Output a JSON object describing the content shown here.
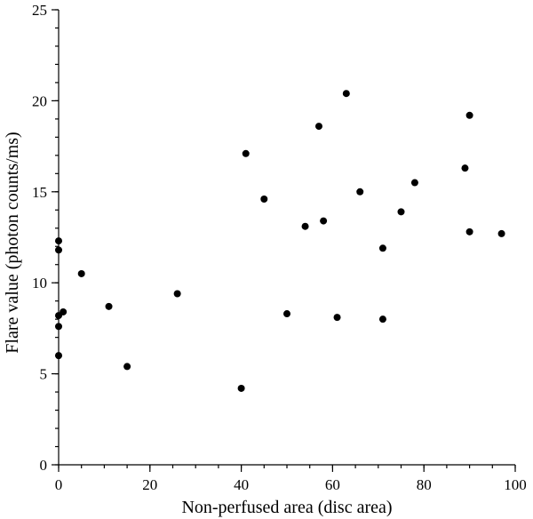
{
  "chart_data": {
    "type": "scatter",
    "title": "",
    "xlabel": "Non-perfused area (disc area)",
    "ylabel": "Flare value (photon counts/ms)",
    "xlim": [
      0,
      100
    ],
    "ylim": [
      0,
      25
    ],
    "xticks": [
      0,
      20,
      40,
      60,
      80,
      100
    ],
    "yticks": [
      0,
      5,
      10,
      15,
      20,
      25
    ],
    "x_minor_step": 5,
    "y_minor_step": 1,
    "grid": false,
    "series": [
      {
        "color": "#000000",
        "points": [
          {
            "x": 0,
            "y": 12.3
          },
          {
            "x": 0,
            "y": 11.8
          },
          {
            "x": 0,
            "y": 8.2
          },
          {
            "x": 0,
            "y": 7.6
          },
          {
            "x": 0,
            "y": 6.0
          },
          {
            "x": 1,
            "y": 8.4
          },
          {
            "x": 5,
            "y": 10.5
          },
          {
            "x": 11,
            "y": 8.7
          },
          {
            "x": 15,
            "y": 5.4
          },
          {
            "x": 26,
            "y": 9.4
          },
          {
            "x": 40,
            "y": 4.2
          },
          {
            "x": 41,
            "y": 17.1
          },
          {
            "x": 45,
            "y": 14.6
          },
          {
            "x": 50,
            "y": 8.3
          },
          {
            "x": 54,
            "y": 13.1
          },
          {
            "x": 57,
            "y": 18.6
          },
          {
            "x": 58,
            "y": 13.4
          },
          {
            "x": 61,
            "y": 8.1
          },
          {
            "x": 63,
            "y": 20.4
          },
          {
            "x": 66,
            "y": 15.0
          },
          {
            "x": 71,
            "y": 11.9
          },
          {
            "x": 71,
            "y": 8.0
          },
          {
            "x": 75,
            "y": 13.9
          },
          {
            "x": 78,
            "y": 15.5
          },
          {
            "x": 89,
            "y": 16.3
          },
          {
            "x": 90,
            "y": 19.2
          },
          {
            "x": 90,
            "y": 12.8
          },
          {
            "x": 97,
            "y": 12.7
          }
        ]
      }
    ]
  }
}
